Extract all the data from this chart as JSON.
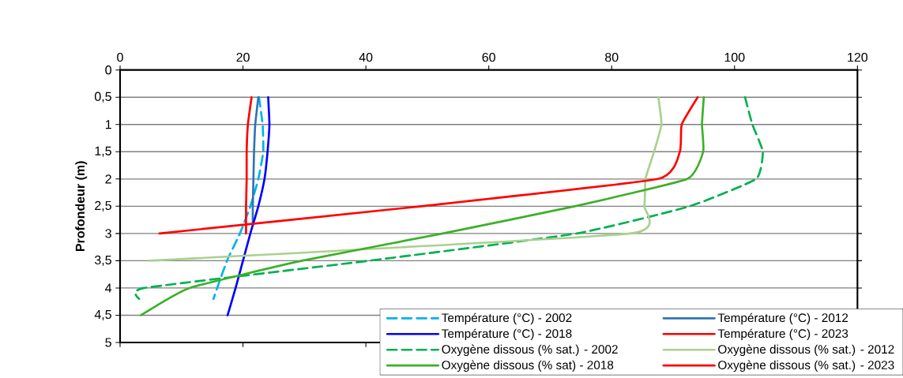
{
  "chart_data": {
    "type": "line",
    "ylabel": "Profondeur (m)",
    "xlim": [
      0,
      120
    ],
    "xticks": [
      0,
      20,
      40,
      60,
      80,
      100,
      120
    ],
    "ylim": [
      5,
      0
    ],
    "yticks": [
      0,
      {
        "value": 0.5,
        "label": "0,5"
      },
      1,
      {
        "value": 1.5,
        "label": "1,5"
      },
      2,
      {
        "value": 2.5,
        "label": "2,5"
      },
      3,
      {
        "value": 3.5,
        "label": "3,5"
      },
      4,
      {
        "value": 4.5,
        "label": "4,5"
      },
      5
    ],
    "grid": "y",
    "legend": "bottom right",
    "marker": "none",
    "series": [
      {
        "name": "Température (°C) - 2002",
        "color": "#00b0f0",
        "line_style": "dashed",
        "x": [
          22.6,
          23.2,
          23.3,
          22.5,
          21.2,
          19.5,
          17.4,
          15.8,
          15.2
        ],
        "values": [
          0.5,
          1,
          1.5,
          2,
          2.5,
          3,
          3.5,
          4,
          4.2
        ]
      },
      {
        "name": "Température (°C) - 2012",
        "color": "#2e75b6",
        "line_style": "solid",
        "x": [
          22.5,
          22.0,
          21.8,
          21.7,
          21.6,
          21.6
        ],
        "values": [
          0.5,
          1,
          1.5,
          2,
          2.5,
          2.8
        ]
      },
      {
        "name": "Température (°C) - 2018",
        "color": "#0000ff",
        "line_style": "solid",
        "x": [
          24.1,
          24.3,
          24.0,
          23.5,
          22.5,
          21.2,
          20.0,
          18.8,
          17.5
        ],
        "values": [
          0.5,
          1,
          1.5,
          2,
          2.5,
          3,
          3.5,
          4,
          4.5
        ]
      },
      {
        "name": "Température (°C) - 2023",
        "color": "#ff0000",
        "line_style": "solid",
        "x": [
          21.4,
          20.8,
          20.6,
          20.6,
          20.5,
          20.5
        ],
        "values": [
          0.5,
          1,
          1.5,
          2,
          2.5,
          3
        ]
      },
      {
        "name": "Oxygène dissous (% sat.) - 2002",
        "color": "#00b050",
        "line_style": "dashed",
        "x": [
          101.7,
          102.9,
          104.6,
          103.5,
          92.7,
          74.3,
          40.5,
          3.9,
          3.1
        ],
        "values": [
          0.5,
          1,
          1.5,
          2,
          2.5,
          3,
          3.5,
          4,
          4.2
        ]
      },
      {
        "name": "Oxygène dissous (% sat.) - 2012",
        "color": "#a9d18e",
        "line_style": "solid",
        "x": [
          87.6,
          88.1,
          86.9,
          85.5,
          85.3,
          83.0,
          4.9
        ],
        "values": [
          0.5,
          1,
          1.5,
          2,
          2.5,
          3,
          3.5
        ]
      },
      {
        "name": "Oxygène dissous (% sat) - 2018",
        "color": "#3cb028",
        "line_style": "solid",
        "x": [
          95.0,
          94.7,
          94.9,
          92.3,
          74.0,
          52.5,
          29.6,
          11.3,
          3.4
        ],
        "values": [
          0.5,
          1,
          1.5,
          2,
          2.5,
          3,
          3.5,
          4,
          4.5
        ]
      },
      {
        "name": "Oxygène dissous (% sat.) - 2023",
        "color": "#ff0000",
        "line_style": "solid",
        "x": [
          94.0,
          91.4,
          91.1,
          87.5,
          49.0,
          6.4
        ],
        "values": [
          0.5,
          1,
          1.5,
          2,
          2.5,
          3
        ]
      }
    ]
  }
}
